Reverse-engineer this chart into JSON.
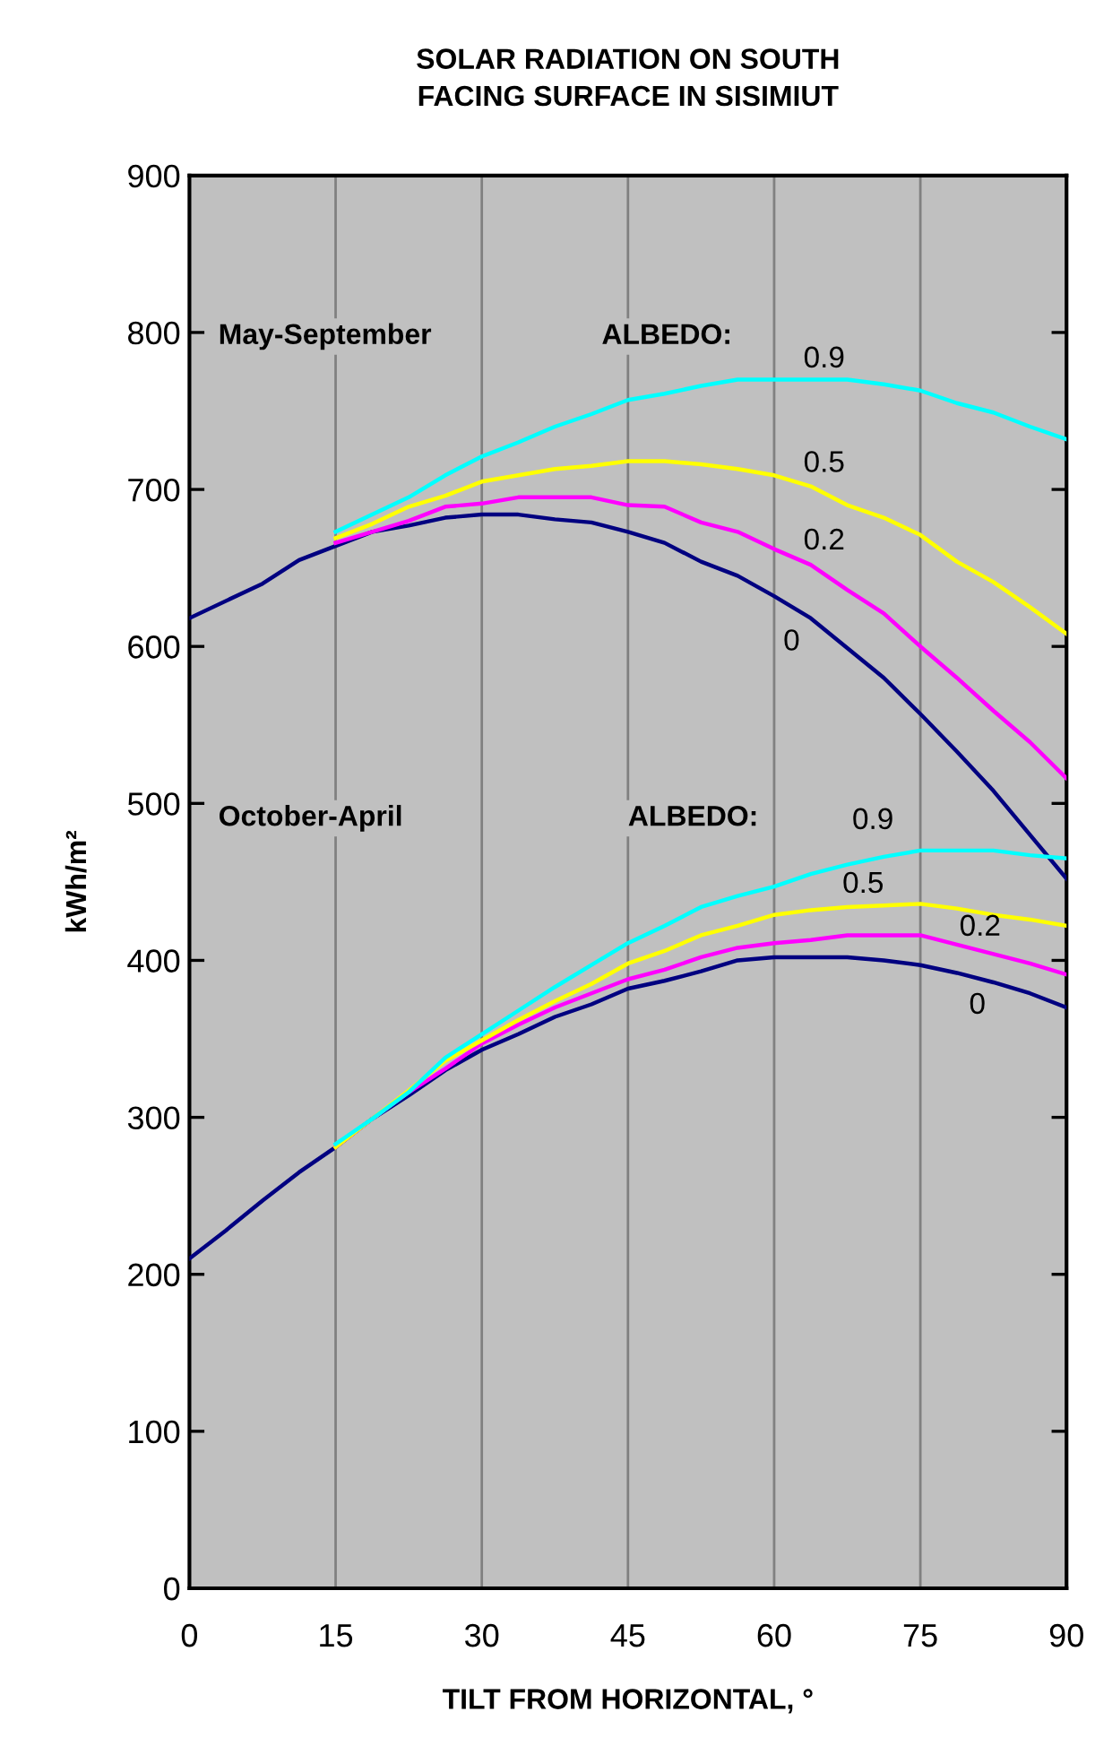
{
  "chart_data": {
    "type": "line",
    "title": "SOLAR RADIATION ON SOUTH\nFACING SURFACE IN SISIMIUT",
    "xlabel": "TILT FROM HORIZONTAL, °",
    "ylabel": "kWh/m²",
    "xlim": [
      0,
      90
    ],
    "ylim": [
      0,
      900
    ],
    "xticks": [
      0,
      15,
      30,
      45,
      60,
      75,
      90
    ],
    "yticks": [
      0,
      100,
      200,
      300,
      400,
      500,
      600,
      700,
      800,
      900
    ],
    "grid": "x",
    "legend": false,
    "marker": "none",
    "line_style": "solid",
    "series": [
      {
        "name": "0",
        "color": "#000080",
        "x": [
          0,
          7.5,
          11.25,
          15,
          18.75,
          22.5,
          26.25,
          30,
          33.75,
          37.5,
          41.25,
          45,
          48.75,
          52.5,
          56.25,
          60,
          63.75,
          67.5,
          71.25,
          75,
          78.75,
          82.5,
          86.25,
          90
        ],
        "values": [
          618,
          640,
          655,
          664,
          673,
          677,
          682,
          684,
          684,
          681,
          679,
          673,
          666,
          654,
          645,
          632,
          618,
          599,
          580,
          557,
          533,
          508,
          480,
          452
        ]
      },
      {
        "name": "0.2",
        "color": "#ff00ff",
        "x": [
          15,
          18.75,
          22.5,
          26.25,
          30,
          33.75,
          37.5,
          41.25,
          45,
          48.75,
          52.5,
          56.25,
          60,
          63.75,
          67.5,
          71.25,
          75,
          78.75,
          82.5,
          86.25,
          90
        ],
        "values": [
          666,
          673,
          680,
          689,
          691,
          695,
          695,
          695,
          690,
          689,
          679,
          673,
          662,
          652,
          636,
          621,
          600,
          580,
          559,
          539,
          516
        ]
      },
      {
        "name": "0.5",
        "color": "#ffff00",
        "x": [
          15,
          18.75,
          22.5,
          26.25,
          30,
          33.75,
          37.5,
          41.25,
          45,
          48.75,
          52.5,
          56.25,
          60,
          63.75,
          67.5,
          71.25,
          75,
          78.75,
          82.5,
          86.25,
          90
        ],
        "values": [
          669,
          678,
          689,
          696,
          705,
          709,
          713,
          715,
          718,
          718,
          716,
          713,
          709,
          702,
          690,
          682,
          671,
          654,
          641,
          625,
          608
        ]
      },
      {
        "name": "0.9",
        "color": "#00ffff",
        "x": [
          15,
          18.75,
          22.5,
          26.25,
          30,
          33.75,
          37.5,
          41.25,
          45,
          48.75,
          52.5,
          56.25,
          60,
          63.75,
          67.5,
          71.25,
          75,
          78.75,
          82.5,
          86.25,
          90
        ],
        "values": [
          673,
          684,
          695,
          709,
          721,
          730,
          740,
          748,
          757,
          761,
          766,
          770,
          770,
          770,
          770,
          767,
          763,
          755,
          749,
          740,
          732
        ]
      },
      {
        "name": "0",
        "color": "#000080",
        "x": [
          0,
          3.75,
          7.5,
          11.25,
          15,
          18.75,
          22.5,
          26.25,
          30,
          33.75,
          37.5,
          41.25,
          45,
          48.75,
          52.5,
          56.25,
          60,
          63.75,
          67.5,
          71.25,
          75,
          78.75,
          82.5,
          86.25,
          90
        ],
        "values": [
          210,
          228,
          247,
          265,
          281,
          299,
          314,
          330,
          343,
          353,
          364,
          372,
          382,
          387,
          393,
          400,
          402,
          402,
          402,
          400,
          397,
          392,
          386,
          379,
          370
        ]
      },
      {
        "name": "0.2",
        "color": "#ff00ff",
        "x": [
          15,
          18.75,
          22.5,
          26.25,
          30,
          33.75,
          37.5,
          41.25,
          45,
          48.75,
          52.5,
          56.25,
          60,
          63.75,
          67.5,
          71.25,
          75,
          78.75,
          82.5,
          86.25,
          90
        ],
        "values": [
          281,
          299,
          316,
          331,
          347,
          359,
          370,
          379,
          388,
          394,
          402,
          408,
          411,
          413,
          416,
          416,
          416,
          410,
          404,
          398,
          391
        ]
      },
      {
        "name": "0.5",
        "color": "#ffff00",
        "x": [
          15,
          18.75,
          22.5,
          26.25,
          30,
          33.75,
          37.5,
          41.25,
          45,
          48.75,
          52.5,
          56.25,
          60,
          63.75,
          67.5,
          71.25,
          75,
          78.75,
          82.5,
          86.25,
          90
        ],
        "values": [
          281,
          299,
          317,
          336,
          349,
          362,
          374,
          385,
          398,
          406,
          416,
          422,
          429,
          432,
          434,
          435,
          436,
          433,
          429,
          426,
          422
        ]
      },
      {
        "name": "0.9",
        "color": "#00ffff",
        "x": [
          15,
          18.75,
          22.5,
          26.25,
          30,
          33.75,
          37.5,
          41.25,
          45,
          48.75,
          52.5,
          56.25,
          60,
          63.75,
          67.5,
          71.25,
          75,
          78.75,
          82.5,
          86.25,
          90
        ],
        "values": [
          283,
          299,
          316,
          338,
          353,
          368,
          383,
          397,
          411,
          422,
          434,
          441,
          447,
          455,
          461,
          466,
          470,
          470,
          470,
          467,
          465
        ]
      }
    ],
    "annotations": [
      "May-September",
      "ALBEDO:",
      "October-April",
      "ALBEDO:"
    ]
  }
}
